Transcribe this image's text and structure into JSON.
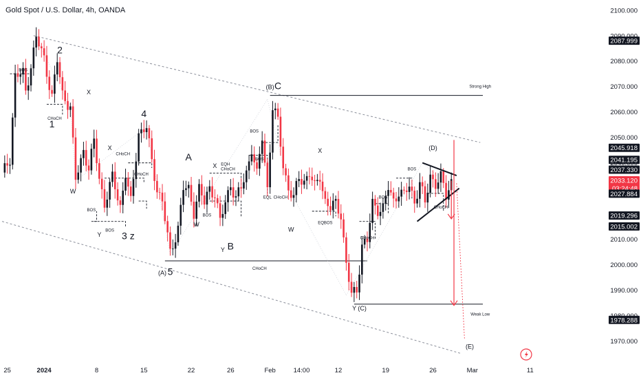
{
  "chart_data": {
    "type": "candlestick",
    "title": "Gold Spot / U.S. Dollar, 4h, OANDA",
    "ylim": [
      1962,
      2104
    ],
    "y_ticks": [
      "1970.000",
      "1980.000",
      "1990.000",
      "2000.000",
      "2010.000",
      "2020.000",
      "2030.000",
      "2040.000",
      "2050.000",
      "2060.000",
      "2070.000",
      "2080.000",
      "2090.000",
      "2100.000"
    ],
    "x_ticks": [
      {
        "label": "25",
        "idx": 2
      },
      {
        "label": "2024",
        "idx": 16
      },
      {
        "label": "8",
        "idx": 36
      },
      {
        "label": "15",
        "idx": 54
      },
      {
        "label": "22",
        "idx": 72
      },
      {
        "label": "26",
        "idx": 87
      },
      {
        "label": "Feb",
        "idx": 102
      },
      {
        "label": "14:00",
        "idx": 114
      },
      {
        "label": "12",
        "idx": 128
      },
      {
        "label": "19",
        "idx": 146
      },
      {
        "label": "26",
        "idx": 164
      },
      {
        "label": "Mar",
        "idx": 179
      },
      {
        "label": "11",
        "idx": 201
      }
    ],
    "price_labels": [
      {
        "value": 2087.999,
        "text": "2087.999",
        "color": "#131722"
      },
      {
        "value": 2045.918,
        "text": "2045.918",
        "color": "#131722"
      },
      {
        "value": 2041.195,
        "text": "2041.195",
        "color": "#131722"
      },
      {
        "value": 2037.33,
        "text": "2037.330",
        "color": "#131722"
      },
      {
        "value": 2033.12,
        "text": "2033.120",
        "color": "#f23645",
        "countdown": "03:24:48"
      },
      {
        "value": 2027.884,
        "text": "2027.884",
        "color": "#131722"
      },
      {
        "value": 2019.296,
        "text": "2019.296",
        "color": "#131722"
      },
      {
        "value": 2015.002,
        "text": "2015.002",
        "color": "#131722"
      },
      {
        "value": 1978.288,
        "text": "1978.288",
        "color": "#131722"
      }
    ],
    "colors": {
      "up": "#131722",
      "down": "#f23645",
      "line": "#131722",
      "channel": "#8a8e99",
      "projection": "#f23645"
    },
    "anchors": [
      [
        0,
        2035
      ],
      [
        3,
        2042
      ],
      [
        5,
        2074
      ],
      [
        8,
        2075
      ],
      [
        9,
        2068
      ],
      [
        13,
        2089
      ],
      [
        16,
        2081
      ],
      [
        19,
        2066
      ],
      [
        21,
        2080
      ],
      [
        23,
        2067
      ],
      [
        26,
        2062
      ],
      [
        28,
        2033
      ],
      [
        31,
        2045
      ],
      [
        33,
        2038
      ],
      [
        35,
        2048
      ],
      [
        37,
        2034
      ],
      [
        39,
        2024
      ],
      [
        42,
        2034
      ],
      [
        45,
        2023
      ],
      [
        47,
        2036
      ],
      [
        49,
        2024
      ],
      [
        52,
        2052
      ],
      [
        55,
        2054
      ],
      [
        57,
        2040
      ],
      [
        59,
        2030
      ],
      [
        61,
        2025
      ],
      [
        64,
        2004
      ],
      [
        67,
        2015
      ],
      [
        69,
        2030
      ],
      [
        71,
        2029
      ],
      [
        73,
        2021
      ],
      [
        75,
        2030
      ],
      [
        77,
        2024
      ],
      [
        79,
        2030
      ],
      [
        81,
        2028
      ],
      [
        83,
        2017
      ],
      [
        85,
        2024
      ],
      [
        87,
        2032
      ],
      [
        89,
        2026
      ],
      [
        91,
        2030
      ],
      [
        93,
        2036
      ],
      [
        95,
        2046
      ],
      [
        97,
        2035
      ],
      [
        99,
        2050
      ],
      [
        101,
        2030
      ],
      [
        103,
        2062
      ],
      [
        105,
        2056
      ],
      [
        107,
        2039
      ],
      [
        109,
        2030
      ],
      [
        111,
        2026
      ],
      [
        113,
        2034
      ],
      [
        115,
        2033
      ],
      [
        117,
        2036
      ],
      [
        119,
        2030
      ],
      [
        121,
        2035
      ],
      [
        123,
        2025
      ],
      [
        125,
        2022
      ],
      [
        127,
        2024
      ],
      [
        129,
        2020
      ],
      [
        131,
        2000
      ],
      [
        133,
        1988
      ],
      [
        135,
        1990
      ],
      [
        137,
        2008
      ],
      [
        139,
        2009
      ],
      [
        141,
        2024
      ],
      [
        143,
        2022
      ],
      [
        145,
        2022
      ],
      [
        147,
        2030
      ],
      [
        149,
        2025
      ],
      [
        151,
        2029
      ],
      [
        153,
        2027
      ],
      [
        155,
        2031
      ],
      [
        157,
        2025
      ],
      [
        159,
        2032
      ],
      [
        161,
        2024
      ],
      [
        163,
        2035
      ],
      [
        165,
        2032
      ],
      [
        167,
        2034
      ],
      [
        169,
        2027
      ],
      [
        171,
        2033
      ]
    ],
    "channel_upper": [
      [
        12,
        2090
      ],
      [
        182,
        2048
      ]
    ],
    "channel_lower": [
      [
        0,
        2017
      ],
      [
        175,
        1965
      ]
    ],
    "triangle": [
      [
        [
          160,
          2040
        ],
        [
          173,
          2035
        ]
      ],
      [
        [
          158,
          2017
        ],
        [
          174,
          2030
        ]
      ]
    ],
    "hlines": [
      {
        "x1": 102,
        "x2": 183,
        "y": 2066.5,
        "label": "Strong High",
        "lx": 182,
        "ly": 2069.5
      },
      {
        "x1": 62,
        "x2": 139,
        "y": 2001.5,
        "label": "CHoCH",
        "lx": 98,
        "ly": 1998
      },
      {
        "x1": 134,
        "x2": 183,
        "y": 1984.5,
        "label": "Weak Low",
        "lx": 182,
        "ly": 1980
      }
    ],
    "dashed_boxes": [
      [
        [
          3,
          2075
        ],
        [
          11,
          2075
        ],
        [
          11,
          2071
        ],
        null
      ],
      [
        [
          17,
          2063
        ],
        [
          23,
          2063
        ],
        [
          23,
          2059
        ],
        null
      ],
      [
        [
          34,
          2017
        ],
        [
          36,
          2017
        ],
        [
          36,
          2021
        ],
        null
      ],
      [
        [
          35,
          2017
        ],
        [
          47,
          2017
        ],
        [
          47,
          2015
        ],
        null
      ],
      [
        [
          39,
          2034
        ],
        [
          54,
          2034
        ],
        [
          54,
          2032
        ],
        null
      ],
      [
        [
          48,
          2040
        ],
        [
          57,
          2040
        ],
        [
          57,
          2038
        ],
        null
      ],
      [
        [
          52,
          2025
        ],
        [
          55,
          2025
        ],
        [
          55,
          2022
        ],
        null
      ],
      [
        [
          79,
          2025
        ],
        [
          91,
          2025
        ],
        [
          91,
          2019
        ],
        null
      ],
      [
        [
          79,
          2036
        ],
        [
          91,
          2036
        ],
        [
          91,
          2029
        ],
        null
      ],
      [
        [
          94,
          2043
        ],
        [
          101,
          2043
        ],
        [
          101,
          2028
        ],
        null
      ],
      [
        [
          99,
          2048
        ],
        [
          105,
          2048
        ],
        [
          105,
          2055
        ],
        null
      ],
      [
        [
          118,
          2021
        ],
        [
          127,
          2021
        ],
        [
          127,
          2019
        ],
        null
      ],
      [
        [
          136,
          2017
        ],
        [
          142,
          2017
        ],
        [
          142,
          2010
        ],
        null
      ],
      [
        [
          142,
          2024
        ],
        [
          147,
          2024
        ],
        [
          147,
          2020
        ],
        null
      ],
      [
        [
          150,
          2034
        ],
        [
          156,
          2034
        ],
        [
          156,
          2026
        ],
        null
      ],
      [
        [
          162,
          2028
        ],
        [
          168,
          2028
        ],
        [
          168,
          2021
        ],
        null
      ]
    ],
    "dotted_paths": [
      [
        [
          13,
          2089
        ],
        [
          26,
          2062
        ]
      ],
      [
        [
          26,
          2062
        ],
        [
          28,
          2033
        ]
      ],
      [
        [
          28,
          2033
        ],
        [
          55,
          2054
        ]
      ],
      [
        [
          55,
          2054
        ],
        [
          64,
          2004
        ]
      ],
      [
        [
          64,
          2004
        ],
        [
          101,
          2065
        ]
      ],
      [
        [
          101,
          2065
        ],
        [
          109,
          2030
        ]
      ],
      [
        [
          109,
          2030
        ],
        [
          131,
          1988
        ]
      ],
      [
        [
          131,
          1988
        ],
        [
          160,
          2040
        ]
      ],
      [
        [
          160,
          2040
        ],
        [
          171,
          2030
        ]
      ]
    ],
    "projection": [
      [
        [
          171,
          2033
        ],
        [
          171,
          2018
        ]
      ],
      [
        [
          172,
          2049
        ],
        [
          172,
          1984
        ]
      ],
      [
        [
          173,
          2032
        ],
        [
          176,
          1971
        ]
      ]
    ],
    "labels_sm": [
      {
        "t": "BOS",
        "x": 8,
        "y": 2076
      },
      {
        "t": "CHoCH",
        "x": 20,
        "y": 2057
      },
      {
        "t": "BOS",
        "x": 34,
        "y": 2021
      },
      {
        "t": "BOS",
        "x": 41,
        "y": 2013
      },
      {
        "t": "CHoCH",
        "x": 46,
        "y": 2043
      },
      {
        "t": "CHoCH",
        "x": 53,
        "y": 2035
      },
      {
        "t": "BOS",
        "x": 78,
        "y": 2019
      },
      {
        "t": "EQH",
        "x": 85,
        "y": 2039
      },
      {
        "t": "CHoCH",
        "x": 86,
        "y": 2037
      },
      {
        "t": "BOS",
        "x": 96,
        "y": 2052
      },
      {
        "t": "BOS",
        "x": 98,
        "y": 2041
      },
      {
        "t": "EQL",
        "x": 101,
        "y": 2026
      },
      {
        "t": "CHoCH",
        "x": 106,
        "y": 2026
      },
      {
        "t": "EQBOS",
        "x": 123,
        "y": 2016
      },
      {
        "t": "CHoCH",
        "x": 139,
        "y": 2010
      },
      {
        "t": "BOS",
        "x": 145,
        "y": 2026
      },
      {
        "t": "BOS",
        "x": 156,
        "y": 2037
      },
      {
        "t": "CHoCH",
        "x": 167,
        "y": 2022
      }
    ],
    "labels_md": [
      {
        "t": "X",
        "x": 33,
        "y": 2067
      },
      {
        "t": "W",
        "x": 27,
        "y": 2028
      },
      {
        "t": "X",
        "x": 41,
        "y": 2045
      },
      {
        "t": "Y",
        "x": 37,
        "y": 2011
      },
      {
        "t": "W",
        "x": 74,
        "y": 2015
      },
      {
        "t": "X",
        "x": 81,
        "y": 2038
      },
      {
        "t": "Y",
        "x": 84,
        "y": 2005
      },
      {
        "t": "W",
        "x": 110,
        "y": 2013
      },
      {
        "t": "X",
        "x": 121,
        "y": 2044
      },
      {
        "t": "(B)",
        "x": 102,
        "y": 2069
      },
      {
        "t": "(D)",
        "x": 164,
        "y": 2045
      },
      {
        "t": "Y (C)",
        "x": 136,
        "y": 1982
      },
      {
        "t": "(A)",
        "x": 61,
        "y": 1996
      },
      {
        "t": "(E)",
        "x": 178,
        "y": 1967
      }
    ],
    "labels_lg": [
      {
        "t": "2",
        "x": 22,
        "y": 2083
      },
      {
        "t": "1",
        "x": 19,
        "y": 2054
      },
      {
        "t": "4",
        "x": 54,
        "y": 2058
      },
      {
        "t": "3 z",
        "x": 48,
        "y": 2010
      },
      {
        "t": "A",
        "x": 71,
        "y": 2041
      },
      {
        "t": "B",
        "x": 87,
        "y": 2006
      },
      {
        "t": "C",
        "x": 105,
        "y": 2069
      },
      {
        "t": "5",
        "x": 64,
        "y": 1996
      }
    ]
  }
}
